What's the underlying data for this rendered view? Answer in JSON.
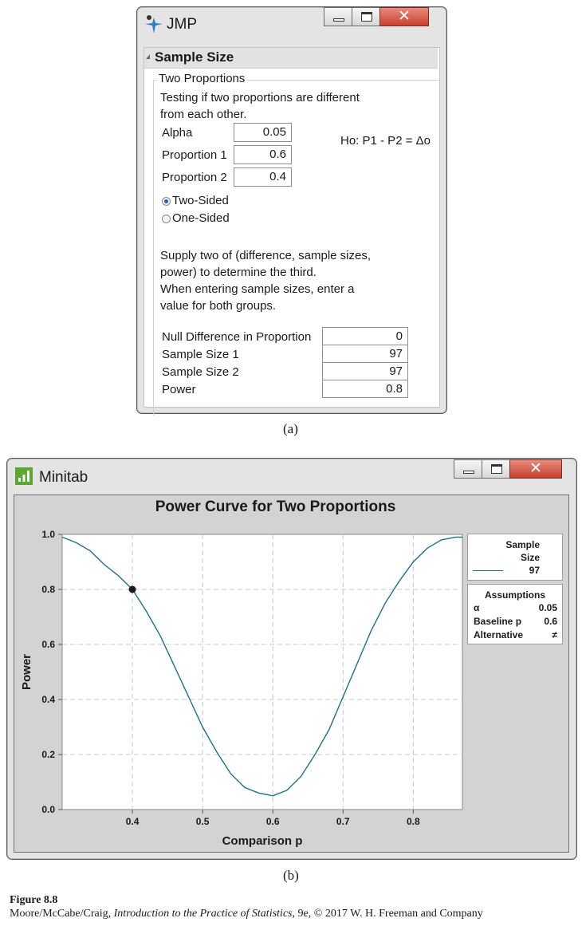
{
  "jmp": {
    "title": "JMP",
    "icon": "jmp-star-logo",
    "outline_title": "Sample Size",
    "group_label": "Two Proportions",
    "description": [
      "Testing if two proportions are different",
      "from each other."
    ],
    "alpha_label": "Alpha",
    "alpha_value": "0.05",
    "p1_label": "Proportion 1",
    "p1_value": "0.6",
    "p2_label": "Proportion 2",
    "p2_value": "0.4",
    "hypothesis": "Ho: P1 - P2 = Δo",
    "two_sided_label": "Two-Sided",
    "one_sided_label": "One-Sided",
    "selected_side": "two-sided",
    "instructions": [
      "Supply two of (difference, sample sizes,",
      "power) to determine the third.",
      "When entering sample sizes, enter a",
      "value for both groups."
    ],
    "null_diff_label": "Null Difference in Proportion",
    "null_diff_value": "0",
    "n1_label": "Sample Size 1",
    "n1_value": "97",
    "n2_label": "Sample Size 2",
    "n2_value": "97",
    "power_label": "Power",
    "power_value": "0.8"
  },
  "caption_a": "(a)",
  "minitab": {
    "title": "Minitab",
    "icon": "minitab-bars-logo",
    "accent": "#5aa832",
    "legend": {
      "header": [
        "Sample",
        "Size"
      ],
      "entry": "97",
      "line_color": "#1f6f8b"
    },
    "assumptions": {
      "header": "Assumptions",
      "rows": [
        {
          "label": "α",
          "value": "0.05"
        },
        {
          "label": "Baseline p",
          "value": "0.6"
        },
        {
          "label": "Alternative",
          "value": "≠"
        }
      ]
    }
  },
  "chart_data": {
    "type": "line",
    "title": "Power Curve for Two Proportions",
    "xlabel": "Comparison p",
    "ylabel": "Power",
    "xlim": [
      0.3,
      0.87
    ],
    "ylim": [
      0.0,
      1.0
    ],
    "xticks": [
      "0.4",
      "0.5",
      "0.6",
      "0.7",
      "0.8"
    ],
    "yticks": [
      "0.0",
      "0.2",
      "0.4",
      "0.6",
      "0.8",
      "1.0"
    ],
    "grid": true,
    "series": [
      {
        "x": [
          0.3,
          0.32,
          0.34,
          0.36,
          0.38,
          0.4,
          0.42,
          0.44,
          0.46,
          0.48,
          0.5,
          0.52,
          0.54,
          0.56,
          0.58,
          0.6,
          0.62,
          0.64,
          0.66,
          0.68,
          0.7,
          0.72,
          0.74,
          0.76,
          0.78,
          0.8,
          0.82,
          0.84,
          0.86,
          0.87
        ],
        "y": [
          0.99,
          0.97,
          0.94,
          0.89,
          0.85,
          0.8,
          0.72,
          0.63,
          0.52,
          0.41,
          0.3,
          0.21,
          0.13,
          0.08,
          0.06,
          0.05,
          0.07,
          0.12,
          0.2,
          0.29,
          0.41,
          0.53,
          0.65,
          0.75,
          0.83,
          0.9,
          0.95,
          0.98,
          0.99,
          0.99
        ],
        "color": "#1f6f8b"
      }
    ],
    "marker": {
      "x": 0.4,
      "y": 0.8,
      "color": "#1a1a1a"
    }
  },
  "caption_b": "(b)",
  "figure_label": "Figure 8.8",
  "credit_pre": "Moore/McCabe/Craig, ",
  "credit_book": "Introduction to the Practice of Statistics",
  "credit_post": ", 9e, © 2017 W. H. Freeman and Company"
}
